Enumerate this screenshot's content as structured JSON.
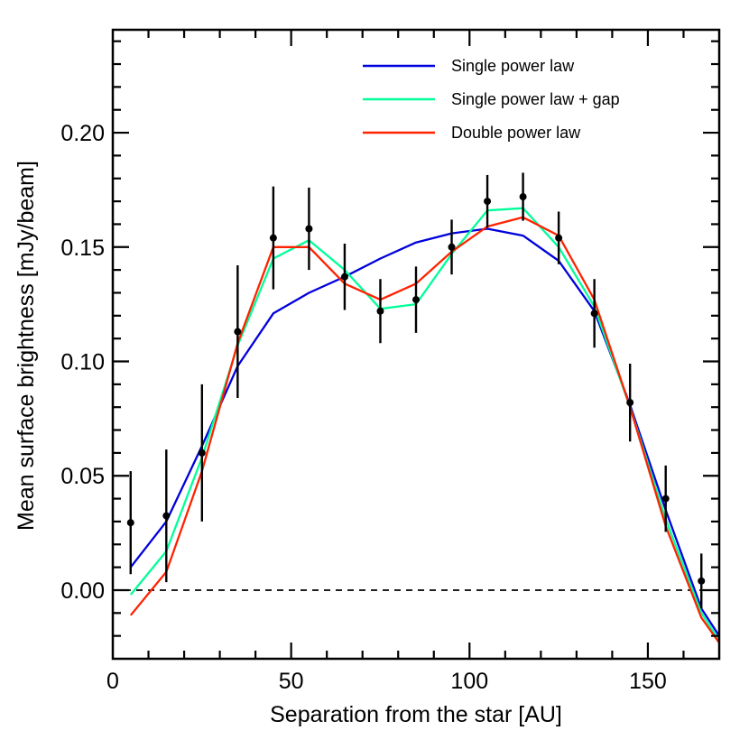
{
  "chart_data": {
    "type": "line",
    "xlabel": "Separation from the star [AU]",
    "ylabel": "Mean surface brightness [mJy/beam]",
    "xlim": [
      0,
      170
    ],
    "ylim": [
      -0.03,
      0.245
    ],
    "xticks": [
      0,
      50,
      100,
      150
    ],
    "xtick_labels": [
      "0",
      "50",
      "100",
      "150"
    ],
    "yticks": [
      0.0,
      0.05,
      0.1,
      0.15,
      0.2
    ],
    "ytick_labels": [
      "0.00",
      "0.05",
      "0.10",
      "0.15",
      "0.20"
    ],
    "grid": false,
    "legend_position": "top-right",
    "reference_line": {
      "y": 0.0,
      "style": "dashed"
    },
    "observations": {
      "x": [
        5,
        15,
        25,
        35,
        45,
        55,
        65,
        75,
        85,
        95,
        105,
        115,
        125,
        135,
        145,
        155,
        165
      ],
      "y": [
        0.0295,
        0.0325,
        0.06,
        0.113,
        0.154,
        0.158,
        0.137,
        0.122,
        0.127,
        0.15,
        0.17,
        0.172,
        0.154,
        0.121,
        0.082,
        0.04,
        0.004
      ],
      "err": [
        0.0225,
        0.029,
        0.03,
        0.029,
        0.0225,
        0.018,
        0.0145,
        0.014,
        0.0145,
        0.012,
        0.0115,
        0.0105,
        0.0115,
        0.015,
        0.017,
        0.0145,
        0.012
      ]
    },
    "series": [
      {
        "name": "Single power law",
        "color": "#0000dd",
        "x": [
          5,
          15,
          25,
          35,
          45,
          55,
          65,
          75,
          85,
          95,
          105,
          115,
          125,
          135,
          145,
          155,
          165,
          170
        ],
        "y": [
          0.01,
          0.03,
          0.063,
          0.098,
          0.121,
          0.13,
          0.137,
          0.145,
          0.152,
          0.156,
          0.158,
          0.155,
          0.144,
          0.122,
          0.081,
          0.035,
          -0.008,
          -0.02
        ]
      },
      {
        "name": "Single power law + gap",
        "color": "#00ff99",
        "x": [
          5,
          15,
          25,
          35,
          45,
          55,
          65,
          75,
          85,
          95,
          105,
          115,
          125,
          135,
          145,
          155,
          165,
          170
        ],
        "y": [
          -0.002,
          0.017,
          0.058,
          0.107,
          0.145,
          0.153,
          0.14,
          0.123,
          0.125,
          0.147,
          0.166,
          0.167,
          0.15,
          0.124,
          0.08,
          0.031,
          -0.01,
          -0.022
        ]
      },
      {
        "name": "Double power law",
        "color": "#ff2200",
        "x": [
          5,
          15,
          25,
          35,
          45,
          55,
          65,
          75,
          85,
          95,
          105,
          115,
          125,
          135,
          145,
          155,
          165,
          170
        ],
        "y": [
          -0.011,
          0.008,
          0.052,
          0.108,
          0.15,
          0.15,
          0.134,
          0.127,
          0.134,
          0.148,
          0.159,
          0.163,
          0.155,
          0.127,
          0.08,
          0.028,
          -0.012,
          -0.023
        ]
      }
    ]
  }
}
